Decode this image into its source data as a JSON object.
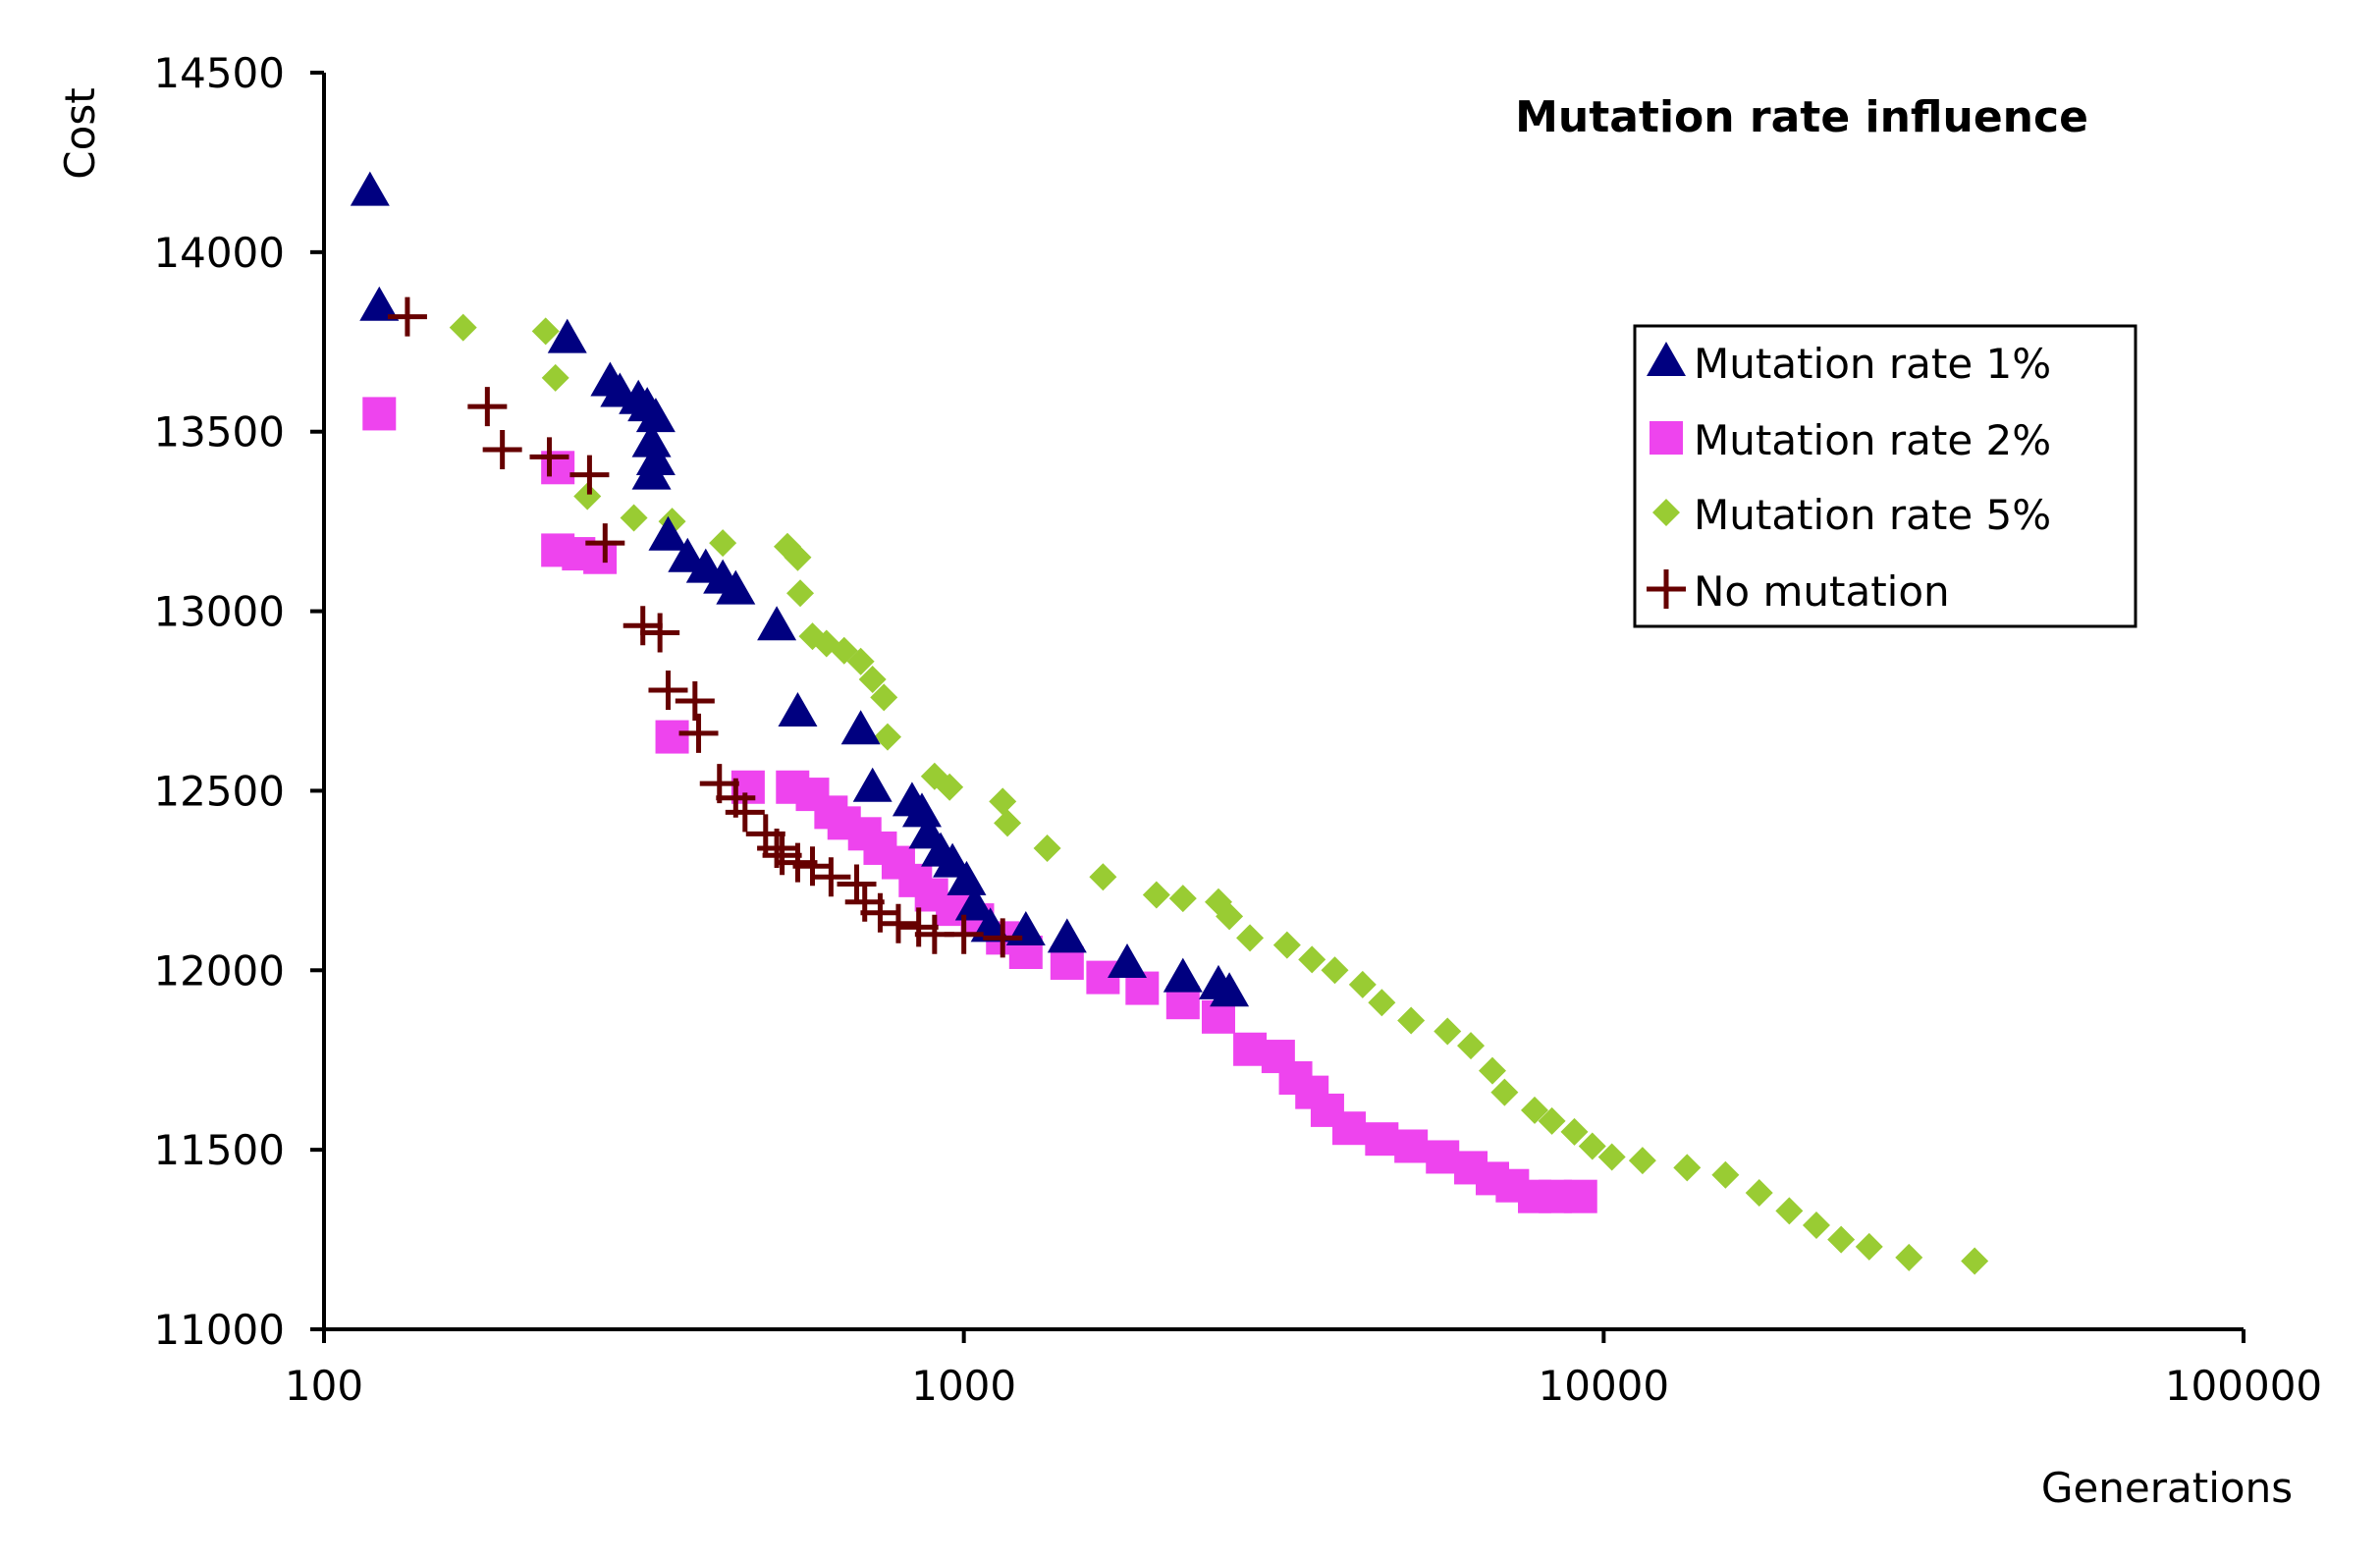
{
  "chart_data": {
    "type": "scatter",
    "title": "Mutation rate influence",
    "xlabel": "Generations",
    "ylabel": "Cost",
    "x_scale": "log",
    "xlim": [
      100,
      100000
    ],
    "ylim": [
      11000,
      14500
    ],
    "x_ticks": [
      "100",
      "1000",
      "10000",
      "100000"
    ],
    "y_ticks": [
      "11000",
      "11500",
      "12000",
      "12500",
      "13000",
      "13500",
      "14000",
      "14500"
    ],
    "grid": false,
    "legend_position": "top-right",
    "series": [
      {
        "name": "Mutation rate 1%",
        "marker": "triangle",
        "color": "#000080",
        "points": [
          [
            118,
            14170
          ],
          [
            122,
            13850
          ],
          [
            240,
            13760
          ],
          [
            280,
            13640
          ],
          [
            290,
            13610
          ],
          [
            310,
            13590
          ],
          [
            320,
            13570
          ],
          [
            330,
            13540
          ],
          [
            325,
            13470
          ],
          [
            330,
            13420
          ],
          [
            325,
            13380
          ],
          [
            345,
            13210
          ],
          [
            370,
            13150
          ],
          [
            395,
            13120
          ],
          [
            420,
            13090
          ],
          [
            440,
            13060
          ],
          [
            510,
            12960
          ],
          [
            550,
            12720
          ],
          [
            690,
            12670
          ],
          [
            720,
            12510
          ],
          [
            830,
            12470
          ],
          [
            860,
            12440
          ],
          [
            880,
            12380
          ],
          [
            920,
            12330
          ],
          [
            960,
            12300
          ],
          [
            1010,
            12250
          ],
          [
            1040,
            12180
          ],
          [
            1100,
            12120
          ],
          [
            1250,
            12110
          ],
          [
            1450,
            12090
          ],
          [
            1800,
            12020
          ],
          [
            2200,
            11980
          ],
          [
            2500,
            11960
          ],
          [
            2600,
            11940
          ]
        ]
      },
      {
        "name": "Mutation rate 2%",
        "marker": "square",
        "color": "#ee44ee",
        "points": [
          [
            122,
            13550
          ],
          [
            232,
            13400
          ],
          [
            232,
            13170
          ],
          [
            250,
            13160
          ],
          [
            270,
            13150
          ],
          [
            350,
            12650
          ],
          [
            460,
            12510
          ],
          [
            540,
            12510
          ],
          [
            580,
            12490
          ],
          [
            620,
            12440
          ],
          [
            650,
            12410
          ],
          [
            700,
            12380
          ],
          [
            740,
            12340
          ],
          [
            790,
            12300
          ],
          [
            840,
            12250
          ],
          [
            890,
            12210
          ],
          [
            960,
            12170
          ],
          [
            1050,
            12140
          ],
          [
            1150,
            12090
          ],
          [
            1250,
            12050
          ],
          [
            1450,
            12020
          ],
          [
            1650,
            11980
          ],
          [
            1900,
            11950
          ],
          [
            2200,
            11910
          ],
          [
            2500,
            11870
          ],
          [
            2800,
            11780
          ],
          [
            3100,
            11760
          ],
          [
            3300,
            11700
          ],
          [
            3500,
            11660
          ],
          [
            3700,
            11610
          ],
          [
            4000,
            11560
          ],
          [
            4500,
            11530
          ],
          [
            5000,
            11510
          ],
          [
            5600,
            11480
          ],
          [
            6200,
            11450
          ],
          [
            6700,
            11420
          ],
          [
            7200,
            11400
          ],
          [
            7800,
            11370
          ],
          [
            8400,
            11370
          ],
          [
            9200,
            11370
          ]
        ]
      },
      {
        "name": "Mutation rate 5%",
        "marker": "diamond",
        "color": "#99cc33",
        "points": [
          [
            165,
            13790
          ],
          [
            222,
            13780
          ],
          [
            230,
            13650
          ],
          [
            258,
            13320
          ],
          [
            305,
            13260
          ],
          [
            350,
            13250
          ],
          [
            420,
            13190
          ],
          [
            530,
            13180
          ],
          [
            550,
            13150
          ],
          [
            555,
            13050
          ],
          [
            580,
            12930
          ],
          [
            610,
            12910
          ],
          [
            650,
            12890
          ],
          [
            690,
            12860
          ],
          [
            720,
            12810
          ],
          [
            750,
            12760
          ],
          [
            760,
            12650
          ],
          [
            900,
            12540
          ],
          [
            950,
            12510
          ],
          [
            1150,
            12470
          ],
          [
            1170,
            12410
          ],
          [
            1350,
            12340
          ],
          [
            1650,
            12260
          ],
          [
            2000,
            12210
          ],
          [
            2200,
            12200
          ],
          [
            2500,
            12190
          ],
          [
            2600,
            12150
          ],
          [
            2800,
            12090
          ],
          [
            3200,
            12070
          ],
          [
            3500,
            12030
          ],
          [
            3800,
            12000
          ],
          [
            4200,
            11960
          ],
          [
            4500,
            11910
          ],
          [
            5000,
            11860
          ],
          [
            5700,
            11830
          ],
          [
            6200,
            11790
          ],
          [
            6700,
            11720
          ],
          [
            7000,
            11660
          ],
          [
            7800,
            11610
          ],
          [
            8300,
            11580
          ],
          [
            9000,
            11550
          ],
          [
            9600,
            11510
          ],
          [
            10300,
            11480
          ],
          [
            11500,
            11470
          ],
          [
            13500,
            11450
          ],
          [
            15500,
            11430
          ],
          [
            17500,
            11380
          ],
          [
            19500,
            11330
          ],
          [
            21500,
            11290
          ],
          [
            23500,
            11250
          ],
          [
            26000,
            11230
          ],
          [
            30000,
            11200
          ],
          [
            38000,
            11190
          ]
        ]
      },
      {
        "name": "No mutation",
        "marker": "plus",
        "color": "#660000",
        "points": [
          [
            135,
            13820
          ],
          [
            180,
            13570
          ],
          [
            190,
            13450
          ],
          [
            225,
            13430
          ],
          [
            260,
            13380
          ],
          [
            275,
            13190
          ],
          [
            315,
            12960
          ],
          [
            335,
            12940
          ],
          [
            345,
            12780
          ],
          [
            380,
            12750
          ],
          [
            385,
            12660
          ],
          [
            415,
            12520
          ],
          [
            440,
            12480
          ],
          [
            455,
            12440
          ],
          [
            490,
            12380
          ],
          [
            510,
            12340
          ],
          [
            520,
            12320
          ],
          [
            550,
            12300
          ],
          [
            580,
            12290
          ],
          [
            620,
            12260
          ],
          [
            680,
            12240
          ],
          [
            700,
            12190
          ],
          [
            740,
            12160
          ],
          [
            790,
            12130
          ],
          [
            850,
            12120
          ],
          [
            900,
            12100
          ],
          [
            1000,
            12100
          ],
          [
            1150,
            12090
          ]
        ]
      }
    ]
  }
}
